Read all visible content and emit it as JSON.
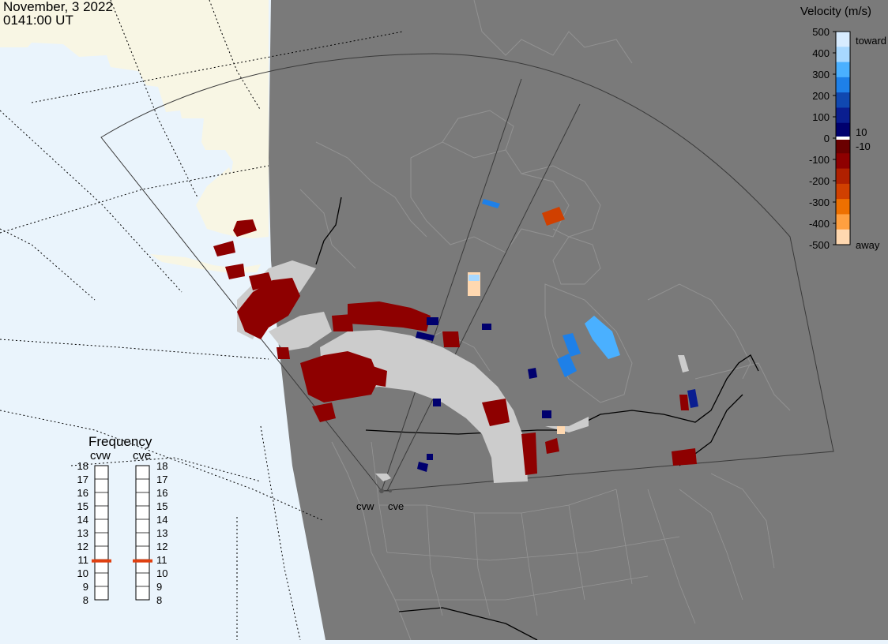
{
  "header": {
    "date": "November, 3 2022",
    "time": "0141:00 UT"
  },
  "legend": {
    "title": "Velocity (m/s)",
    "ticks": [
      "500",
      "400",
      "300",
      "200",
      "100",
      "0",
      "-100",
      "-200",
      "-300",
      "-400",
      "-500"
    ],
    "toward_label": "toward",
    "away_label": "away",
    "pos_gap_label": "10",
    "neg_gap_label": "-10",
    "colors": [
      "#d8ecff",
      "#a8d8ff",
      "#4ab0ff",
      "#1e80e8",
      "#1048b0",
      "#0a1e90",
      "#00006e",
      "#6a0000",
      "#8e0000",
      "#b02000",
      "#d04000",
      "#ee7000",
      "#ffa040",
      "#ffd8b0"
    ]
  },
  "frequency": {
    "title": "Frequency",
    "radar_labels": [
      "cvw",
      "cve"
    ],
    "scale": [
      "18",
      "17",
      "16",
      "15",
      "14",
      "13",
      "12",
      "11",
      "10",
      "9",
      "8"
    ],
    "cvw_value": 10.9,
    "cve_value": 10.9
  },
  "radars": {
    "cvw_label": "cvw",
    "cve_label": "cve"
  },
  "map_colors": {
    "ocean": "#eaf4fc",
    "land_day": "#f8f6e4",
    "night": "#7a7a7a",
    "ground_scatter": "#cccccc"
  }
}
